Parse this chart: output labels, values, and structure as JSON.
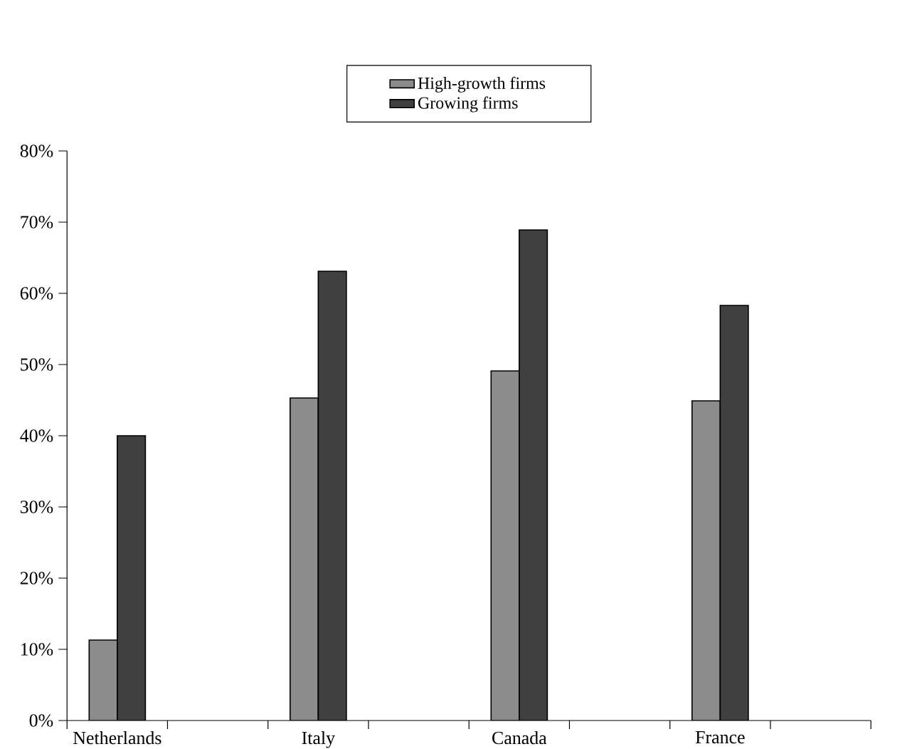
{
  "chart_data": {
    "type": "bar",
    "categories": [
      "Netherlands",
      null,
      "Italy",
      null,
      "Canada",
      null,
      "France",
      null
    ],
    "series": [
      {
        "name": "High-growth firms",
        "color": "#8c8c8c",
        "values": [
          11.3,
          null,
          45.3,
          null,
          49.1,
          null,
          44.9,
          null
        ]
      },
      {
        "name": "Growing firms",
        "color": "#404040",
        "values": [
          40,
          null,
          63.1,
          null,
          68.9,
          null,
          58.3,
          null
        ]
      }
    ],
    "ylim": [
      0,
      80
    ],
    "yticks": [
      {
        "value": 0,
        "label": "0%"
      },
      {
        "value": 10,
        "label": "10%"
      },
      {
        "value": 20,
        "label": "20%"
      },
      {
        "value": 30,
        "label": "30%"
      },
      {
        "value": 40,
        "label": "40%"
      },
      {
        "value": 50,
        "label": "50%"
      },
      {
        "value": 60,
        "label": "60%"
      },
      {
        "value": 70,
        "label": "70%"
      },
      {
        "value": 80,
        "label": "80%"
      }
    ],
    "legend": "top",
    "grid": false
  }
}
